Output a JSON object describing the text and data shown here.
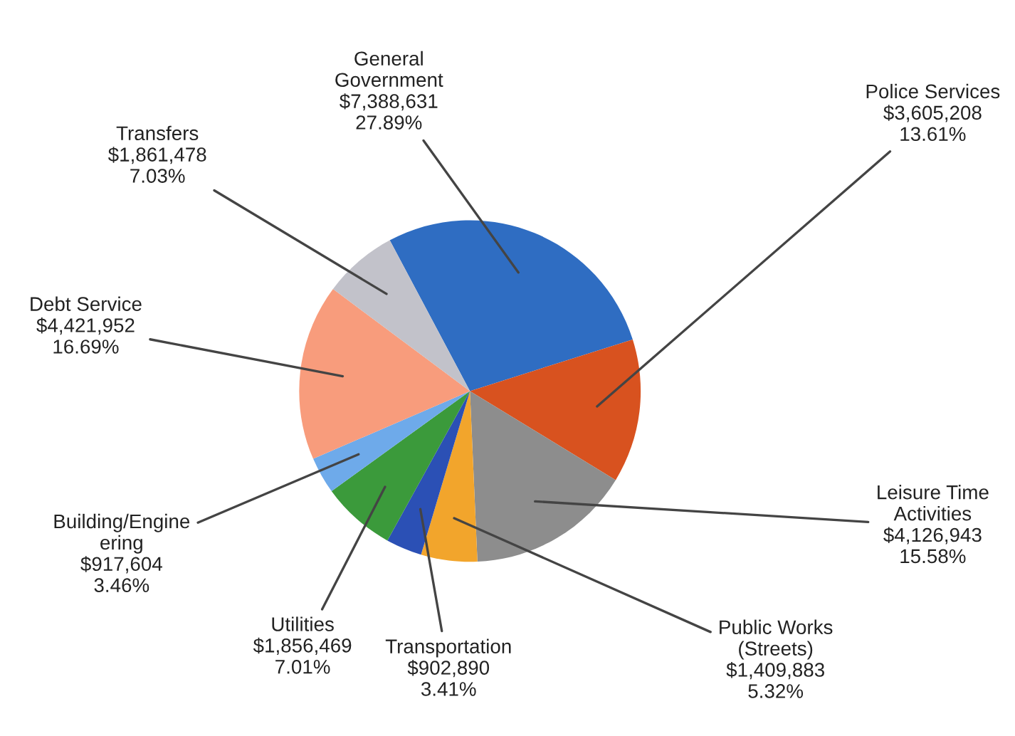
{
  "chart_data": {
    "type": "pie",
    "categories": [
      "General\nGovernment",
      "Police Services",
      "Leisure Time\nActivities",
      "Public Works\n(Streets)",
      "Transportation",
      "Utilities",
      "Building/Engine\nering",
      "Debt Service",
      "Transfers"
    ],
    "values": [
      7388631,
      3605208,
      4126943,
      1409883,
      902890,
      1856469,
      917604,
      4421952,
      1861478
    ],
    "value_labels": [
      "$7,388,631\n27.89%",
      "$3,605,208\n13.61%",
      "$4,126,943\n15.58%",
      "$1,409,883\n5.32%",
      "$902,890\n3.41%",
      "$1,856,469\n7.01%",
      "$917,604\n3.46%",
      "$4,421,952\n16.69%",
      "$1,861,478\n7.03%"
    ],
    "colors": [
      "#2f6dc2",
      "#d8521f",
      "#8d8d8d",
      "#f2a52c",
      "#2b50b5",
      "#3b9a3b",
      "#6eaaea",
      "#f89c7c",
      "#c2c2ca"
    ]
  }
}
